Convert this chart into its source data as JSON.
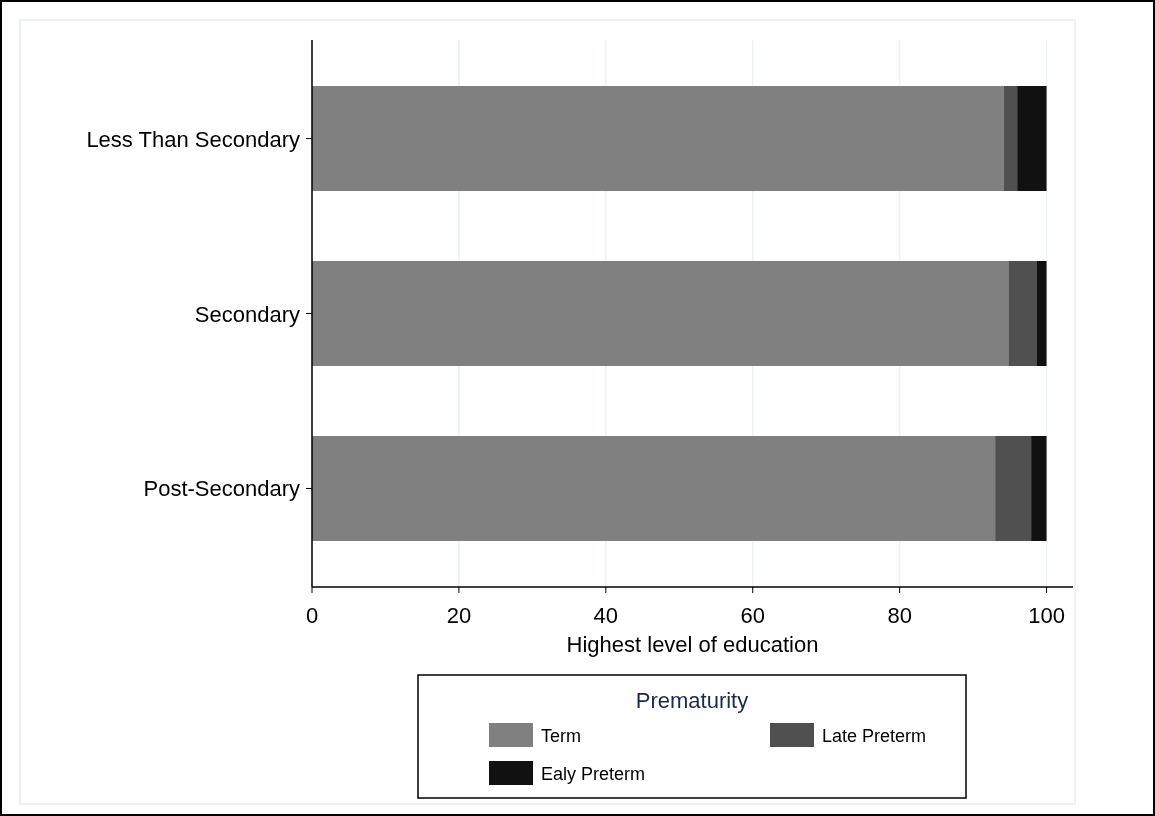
{
  "chart_data": {
    "type": "bar",
    "orientation": "horizontal",
    "stacked": true,
    "categories": [
      "Less Than Secondary",
      "Secondary",
      "Post-Secondary"
    ],
    "series": [
      {
        "name": "Term",
        "color": "#808080",
        "values": [
          94.2,
          94.8,
          93.0
        ]
      },
      {
        "name": "Late Preterm",
        "color": "#505050",
        "values": [
          1.8,
          3.9,
          4.9
        ]
      },
      {
        "name": "Ealy Preterm",
        "color": "#111111",
        "values": [
          4.0,
          1.3,
          2.1
        ]
      }
    ],
    "xlabel": "Highest level of education",
    "legend_title": "Prematurity",
    "legend": "bottom",
    "grid": "x",
    "xlim": [
      0,
      103.6
    ],
    "xticks": [
      0,
      20,
      40,
      60,
      80,
      100
    ]
  }
}
